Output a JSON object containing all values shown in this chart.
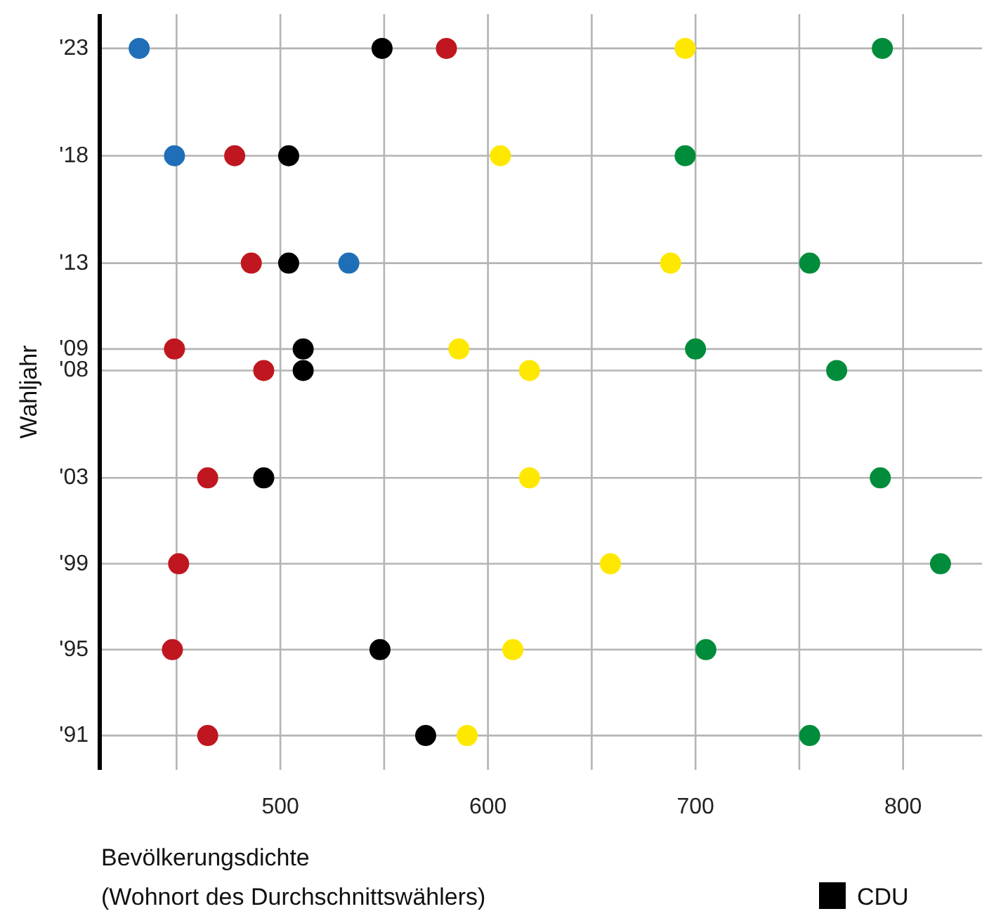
{
  "chart_data": {
    "type": "scatter",
    "xlabel": "Bevölkerungsdichte\n(Wohnort des Durchschnittswählers)",
    "ylabel": "Wahljahr",
    "xlim": [
      413,
      838
    ],
    "xticks": [
      {
        "value": 450,
        "label": null
      },
      500,
      {
        "value": 550,
        "label": null
      },
      600,
      {
        "value": 650,
        "label": null
      },
      700,
      {
        "value": 750,
        "label": null
      },
      800
    ],
    "ylim": [
      1989.4,
      2024.6
    ],
    "yticks": [
      {
        "value": 1991,
        "label": "'91"
      },
      {
        "value": 1995,
        "label": "'95"
      },
      {
        "value": 1999,
        "label": "'99"
      },
      {
        "value": 2003,
        "label": "'03"
      },
      {
        "value": 2008,
        "label": "'08"
      },
      {
        "value": 2009,
        "label": "'09"
      },
      {
        "value": 2013,
        "label": "'13"
      },
      {
        "value": 2018,
        "label": "'18"
      },
      {
        "value": 2023,
        "label": "'23"
      }
    ],
    "grid": true,
    "legend": "bottom right",
    "marker": "circle",
    "series": [
      {
        "color": "#1f6fb8",
        "x": [
          533,
          449,
          432
        ],
        "values": [
          2013,
          2018,
          2023
        ]
      },
      {
        "color": "#c0161f",
        "x": [
          465,
          448,
          451,
          465,
          492,
          449,
          486,
          478,
          580
        ],
        "values": [
          1991,
          1995,
          1999,
          2003,
          2008,
          2009,
          2013,
          2018,
          2023
        ]
      },
      {
        "name": "CDU",
        "color": "#000000",
        "x": [
          570,
          548,
          492,
          511,
          511,
          504,
          504,
          549
        ],
        "values": [
          1991,
          1995,
          2003,
          2008,
          2009,
          2013,
          2018,
          2023
        ]
      },
      {
        "color": "#ffe800",
        "x": [
          590,
          612,
          659,
          620,
          620,
          586,
          688,
          606,
          695
        ],
        "values": [
          1991,
          1995,
          1999,
          2003,
          2008,
          2009,
          2013,
          2018,
          2023
        ]
      },
      {
        "color": "#008c3a",
        "x": [
          755,
          705,
          818,
          789,
          768,
          700,
          755,
          695,
          790
        ],
        "values": [
          1991,
          1995,
          1999,
          2003,
          2008,
          2009,
          2013,
          2018,
          2023
        ]
      }
    ]
  }
}
